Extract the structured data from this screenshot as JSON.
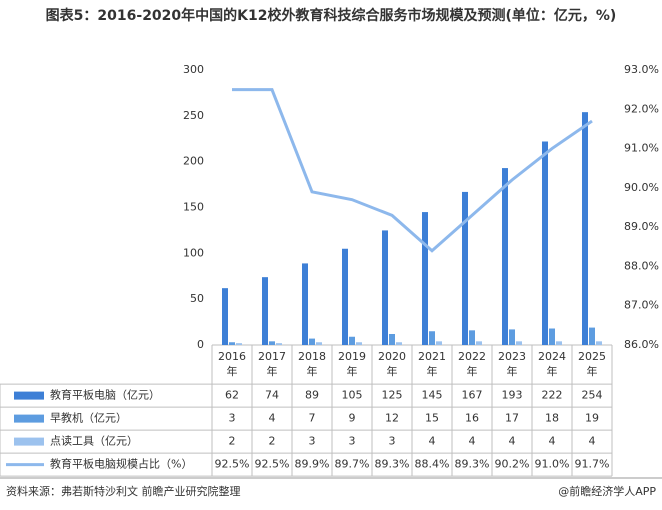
{
  "chart_data": {
    "type": "bar",
    "title": "图表5：2016-2020年中国的K12校外教育科技综合服务市场规模及预测(单位：亿元，%)",
    "categories": [
      "2016年",
      "2017年",
      "2018年",
      "2019年",
      "2020年",
      "2021年",
      "2022年",
      "2023年",
      "2024年",
      "2025年"
    ],
    "series": [
      {
        "name": "教育平板电脑（亿元）",
        "color": "#3d7fd6",
        "values": [
          62,
          74,
          89,
          105,
          125,
          145,
          167,
          193,
          222,
          254
        ]
      },
      {
        "name": "早教机（亿元）",
        "color": "#5d9ce0",
        "values": [
          3,
          4,
          7,
          9,
          12,
          15,
          16,
          17,
          18,
          19
        ]
      },
      {
        "name": "点读工具（亿元）",
        "color": "#9cc2ee",
        "values": [
          2,
          2,
          3,
          3,
          3,
          4,
          4,
          4,
          4,
          4
        ]
      },
      {
        "name": "教育平板电脑规模占比（%）",
        "color": "#8db8ec",
        "type": "line",
        "axis": "y2",
        "values": [
          92.5,
          92.5,
          89.9,
          89.7,
          89.3,
          88.4,
          89.3,
          90.2,
          91.0,
          91.7
        ],
        "value_labels": [
          "92.5%",
          "92.5%",
          "89.9%",
          "89.7%",
          "89.3%",
          "88.4%",
          "89.3%",
          "90.2%",
          "91.0%",
          "91.7%"
        ]
      }
    ],
    "ylim": [
      0,
      300
    ],
    "yticks": [
      0,
      50,
      100,
      150,
      200,
      250,
      300
    ],
    "y2lim": [
      86,
      93
    ],
    "y2ticks": [
      {
        "value": 86,
        "label": "86.0%"
      },
      {
        "value": 87,
        "label": "87.0%"
      },
      {
        "value": 88,
        "label": "88.0%"
      },
      {
        "value": 89,
        "label": "89.0%"
      },
      {
        "value": 90,
        "label": "90.0%"
      },
      {
        "value": 91,
        "label": "91.0%"
      },
      {
        "value": 92,
        "label": "92.0%"
      },
      {
        "value": 93,
        "label": "93.0%"
      }
    ],
    "source": "资料来源：弗若斯特沙利文 前瞻产业研究院整理",
    "credit": "@前瞻经济学人APP"
  }
}
